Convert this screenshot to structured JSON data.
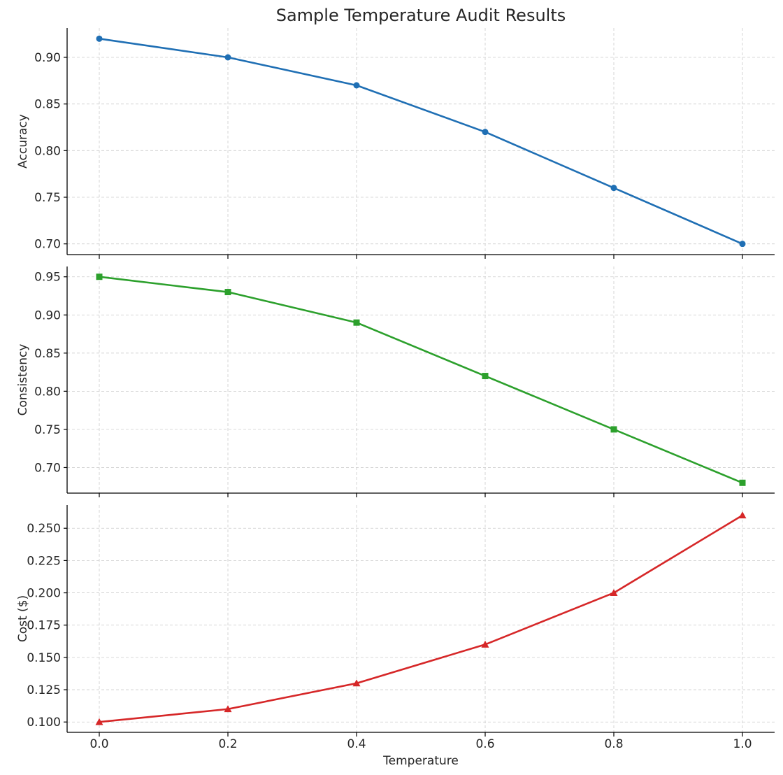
{
  "chart_data": {
    "type": "line",
    "title": "Sample Temperature Audit Results",
    "xlabel": "Temperature",
    "x": [
      0.0,
      0.2,
      0.4,
      0.6,
      0.8,
      1.0
    ],
    "x_tick_labels": [
      "0.0",
      "0.2",
      "0.4",
      "0.6",
      "0.8",
      "1.0"
    ],
    "xlim": [
      -0.05,
      1.05
    ],
    "grid": true,
    "panels": [
      {
        "ylabel": "Accuracy",
        "ylim": [
          0.6885,
          0.9315
        ],
        "yticks": [
          0.7,
          0.75,
          0.8,
          0.85,
          0.9
        ],
        "ytick_labels": [
          "0.70",
          "0.75",
          "0.80",
          "0.85",
          "0.90"
        ],
        "marker": "circle",
        "color": "#1f6fb4",
        "values": [
          0.92,
          0.9,
          0.87,
          0.82,
          0.76,
          0.7
        ]
      },
      {
        "ylabel": "Consistency",
        "ylim": [
          0.6665,
          0.9635
        ],
        "yticks": [
          0.7,
          0.75,
          0.8,
          0.85,
          0.9,
          0.95
        ],
        "ytick_labels": [
          "0.70",
          "0.75",
          "0.80",
          "0.85",
          "0.90",
          "0.95"
        ],
        "marker": "square",
        "color": "#2ca02c",
        "values": [
          0.95,
          0.93,
          0.89,
          0.82,
          0.75,
          0.68
        ]
      },
      {
        "ylabel": "Cost ($)",
        "ylim": [
          0.092,
          0.268
        ],
        "yticks": [
          0.1,
          0.125,
          0.15,
          0.175,
          0.2,
          0.225,
          0.25
        ],
        "ytick_labels": [
          "0.100",
          "0.125",
          "0.150",
          "0.175",
          "0.200",
          "0.225",
          "0.250"
        ],
        "marker": "triangle",
        "color": "#d62728",
        "values": [
          0.1,
          0.11,
          0.13,
          0.16,
          0.2,
          0.26
        ]
      }
    ]
  }
}
